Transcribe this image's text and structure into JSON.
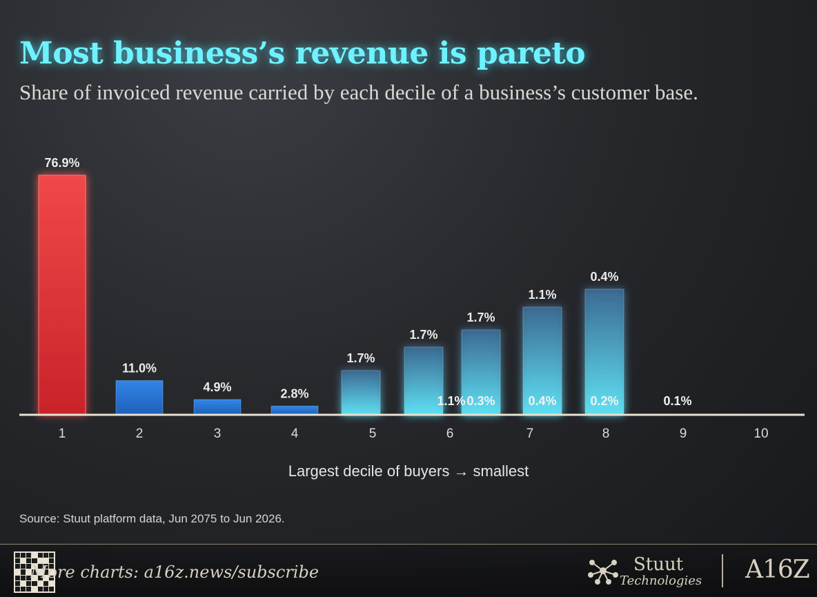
{
  "title": "Most business’s revenue is pareto",
  "subtitle": "Share of invoiced revenue carried by each decile of a business’s customer base.",
  "source": "Source: Stuut platform data, Jun 2075 to Jun 2026.",
  "footer": {
    "cta": "More charts: a16z.news/subscribe",
    "brand_name": "Stuut",
    "brand_sub": "Technologies",
    "partner": "A16Z"
  },
  "colors": {
    "title": "#6ff2ff",
    "highlight_bar": "#e03a3a",
    "blue_bar": "#2a74d8",
    "cyan_bar": "#57d6ec"
  },
  "chart_data": {
    "type": "bar",
    "title": "Most business’s revenue is pareto",
    "xlabel": "Largest decile of buyers → smallest",
    "ylabel": "",
    "categories": [
      "1",
      "2",
      "3",
      "4",
      "5",
      "6",
      "7",
      "8",
      "9",
      "10"
    ],
    "values": [
      76.9,
      11.0,
      4.9,
      2.8,
      1.7,
      1.7,
      1.7,
      1.1,
      0.4,
      0.1
    ],
    "data_labels": [
      "76.9%",
      "11.0%",
      "4.9%",
      "2.8%",
      "1.7%",
      "1.7%",
      "1.7%",
      "1.1%",
      "0.4%",
      "0.1%"
    ],
    "baseline_labels": [
      "",
      "",
      "",
      "",
      "",
      "1.1%",
      "0.3%",
      "0.4%",
      "0.2%",
      "0.1%"
    ],
    "highlight_index": 0,
    "ylim": [
      0,
      80
    ],
    "grid": false,
    "legend": "none"
  }
}
